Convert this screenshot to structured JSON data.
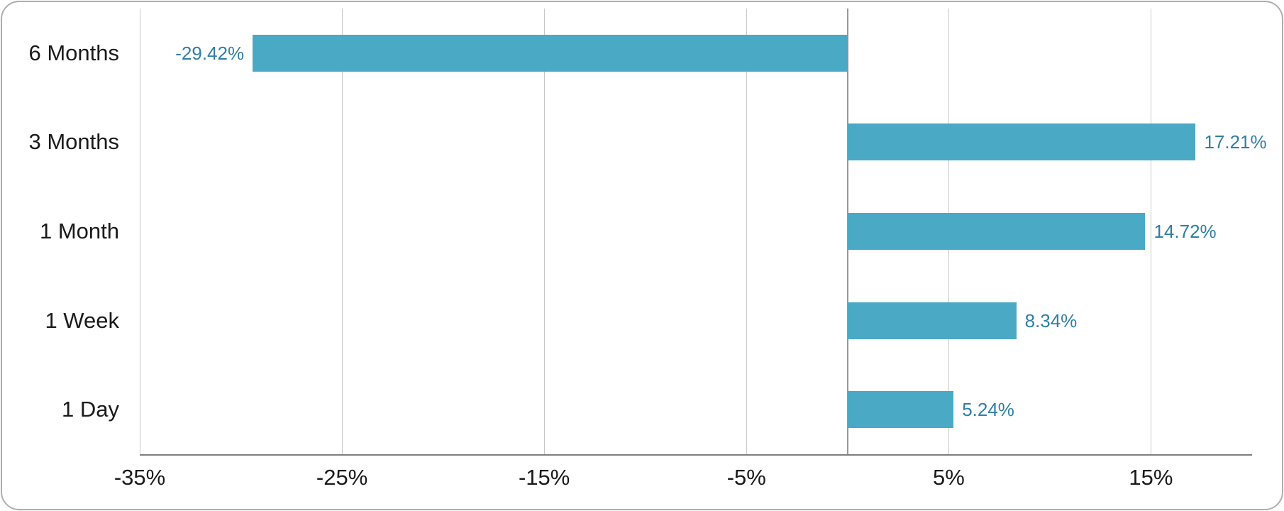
{
  "chart_data": {
    "type": "bar",
    "orientation": "horizontal",
    "title": "",
    "xlabel": "",
    "ylabel": "",
    "categories": [
      "6 Months",
      "3 Months",
      "1 Month",
      "1 Week",
      "1 Day"
    ],
    "values": [
      -29.42,
      17.21,
      14.72,
      8.34,
      5.24
    ],
    "value_labels": [
      "-29.42%",
      "17.21%",
      "14.72%",
      "8.34%",
      "5.24%"
    ],
    "x_ticks": [
      {
        "value": -35,
        "label": "-35%"
      },
      {
        "value": -25,
        "label": "-25%"
      },
      {
        "value": -15,
        "label": "-15%"
      },
      {
        "value": -5,
        "label": "-5%"
      },
      {
        "value": 5,
        "label": "5%"
      },
      {
        "value": 15,
        "label": "15%"
      }
    ],
    "xlim": [
      -35,
      20
    ],
    "grid": "vertical-gridlines-at-ticks",
    "zero_baseline": true,
    "legend": "none",
    "colors": {
      "bar_fill": "#4aa9c5",
      "value_label_text": "#2e7fa6",
      "gridline": "#c9c9c9",
      "zero_line": "#999999",
      "axis_line": "#7f7f7f",
      "axis_text": "#1a1a1a",
      "card_border": "#aeaeae",
      "background": "#ffffff"
    }
  }
}
